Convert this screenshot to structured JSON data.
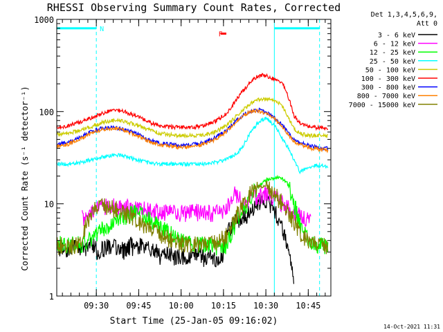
{
  "chart_data": {
    "type": "line",
    "title": "RHESSI Observing Summary Count Rates, Corrected",
    "xlabel": "Start Time (25-Jan-05 09:16:02)",
    "ylabel": "Corrected Count Rate (s⁻¹ detector⁻¹)",
    "x_unit": "minutes after 09:16:02",
    "xlim": [
      0,
      97
    ],
    "ylim": [
      1,
      1000
    ],
    "yscale": "log",
    "x_ticks": [
      "09:30",
      "09:45",
      "10:00",
      "10:15",
      "10:30",
      "10:45"
    ],
    "x_tick_values": [
      14,
      29,
      44,
      59,
      74,
      89
    ],
    "y_ticks": [
      "1",
      "10",
      "100",
      "1000"
    ],
    "y_tick_values": [
      1,
      10,
      100,
      1000
    ],
    "legend_header": [
      "Det 1,3,4,5,6,9,",
      "Att 0"
    ],
    "legend_position": "top-right outside",
    "series": [
      {
        "name": "3 - 6 keV",
        "color": "#000000",
        "x": [
          0,
          2,
          4,
          6,
          8,
          10,
          12,
          14,
          15,
          16,
          18,
          20,
          22,
          24,
          26,
          28,
          30,
          32,
          34,
          36,
          38,
          40,
          42,
          44,
          46,
          48,
          50,
          52,
          54,
          56,
          58,
          59,
          60,
          62,
          64,
          66,
          68,
          70,
          72,
          74,
          76,
          78,
          80,
          82,
          84
        ],
        "y": [
          3.3,
          3.5,
          3.2,
          3.6,
          3.4,
          3.3,
          3.7,
          3.4,
          2.3,
          3.2,
          3.6,
          3.5,
          3.3,
          3.1,
          3.6,
          3.3,
          3.5,
          3.2,
          3.4,
          2.8,
          2.7,
          2.9,
          2.6,
          2.8,
          2.5,
          2.7,
          2.9,
          2.6,
          2.8,
          2.4,
          2.7,
          3.0,
          4.5,
          6.0,
          6.8,
          7.5,
          8.0,
          9.0,
          10.5,
          11.0,
          9.5,
          7.5,
          5.0,
          3.0,
          1.2
        ]
      },
      {
        "name": "6 - 12 keV",
        "color": "#ff00ff",
        "x": [
          9,
          11,
          13,
          15,
          20,
          25,
          30,
          35,
          40,
          45,
          50,
          55,
          60,
          62,
          63,
          64,
          65,
          66,
          68,
          70,
          72,
          74,
          76,
          78,
          80,
          82,
          84,
          86,
          88,
          90
        ],
        "y": [
          7.0,
          8.0,
          9.0,
          9.5,
          9.5,
          9.2,
          8.8,
          8.2,
          8.0,
          8.0,
          8.2,
          8.0,
          8.5,
          12.0,
          13.5,
          12.0,
          11.0,
          11.0,
          11.5,
          12.0,
          12.5,
          12.8,
          12.5,
          11.5,
          10.0,
          9.0,
          8.0,
          7.5,
          7.0,
          6.5
        ]
      },
      {
        "name": "12 - 25 keV",
        "color": "#00ff00",
        "x": [
          0,
          4,
          8,
          10,
          12,
          14,
          16,
          18,
          20,
          24,
          28,
          32,
          36,
          40,
          44,
          48,
          52,
          56,
          60,
          62,
          64,
          66,
          68,
          70,
          72,
          74,
          76,
          78,
          80,
          82,
          84,
          86,
          88,
          90,
          92,
          94,
          96
        ],
        "y": [
          3.8,
          3.6,
          3.7,
          3.8,
          4.2,
          4.8,
          5.3,
          5.8,
          6.3,
          7.3,
          8.3,
          7.0,
          5.8,
          4.8,
          4.0,
          3.8,
          3.6,
          3.5,
          3.6,
          5.0,
          7.0,
          9.0,
          11.0,
          14.0,
          16.0,
          18.0,
          19.0,
          19.5,
          18.5,
          16.0,
          10.0,
          6.0,
          4.5,
          3.8,
          3.5,
          3.6,
          3.5
        ]
      },
      {
        "name": "25 - 50 keV",
        "color": "#00ffff",
        "x": [
          0,
          4,
          8,
          12,
          16,
          20,
          24,
          28,
          32,
          36,
          40,
          44,
          48,
          52,
          56,
          60,
          62,
          64,
          66,
          68,
          70,
          72,
          74,
          76,
          78,
          80,
          82,
          84,
          86,
          88,
          90,
          92,
          94,
          96
        ],
        "y": [
          27,
          27,
          28,
          30,
          32,
          34,
          33,
          30,
          28,
          27,
          27,
          27,
          27,
          27,
          28,
          30,
          33,
          36,
          42,
          55,
          68,
          80,
          85,
          75,
          65,
          50,
          40,
          30,
          22,
          24,
          25,
          26,
          26,
          25
        ]
      },
      {
        "name": "50 - 100 keV",
        "color": "#cccc00",
        "x": [
          0,
          4,
          8,
          12,
          16,
          20,
          24,
          28,
          32,
          36,
          40,
          44,
          48,
          52,
          56,
          60,
          62,
          64,
          66,
          68,
          70,
          72,
          74,
          76,
          78,
          80,
          82,
          84,
          86,
          88,
          90,
          92,
          94,
          96
        ],
        "y": [
          57,
          58,
          62,
          68,
          76,
          80,
          78,
          72,
          64,
          59,
          56,
          55,
          55,
          56,
          60,
          70,
          80,
          92,
          105,
          118,
          130,
          135,
          140,
          135,
          128,
          110,
          85,
          65,
          58,
          56,
          55,
          55,
          55,
          54
        ]
      },
      {
        "name": "100 - 300 keV",
        "color": "#ff0000",
        "x": [
          0,
          4,
          8,
          12,
          16,
          20,
          24,
          28,
          32,
          36,
          40,
          44,
          48,
          52,
          56,
          60,
          62,
          64,
          66,
          68,
          70,
          72,
          74,
          76,
          78,
          80,
          82,
          84,
          86,
          88,
          90,
          92,
          94,
          96
        ],
        "y": [
          68,
          70,
          77,
          85,
          95,
          105,
          100,
          90,
          78,
          70,
          68,
          68,
          68,
          70,
          78,
          95,
          115,
          140,
          170,
          200,
          230,
          250,
          245,
          230,
          220,
          200,
          140,
          90,
          75,
          70,
          68,
          67,
          66,
          65
        ]
      },
      {
        "name": "300 - 800 keV",
        "color": "#0000ff",
        "x": [
          0,
          4,
          8,
          12,
          16,
          20,
          24,
          28,
          32,
          36,
          40,
          44,
          48,
          52,
          56,
          60,
          62,
          64,
          66,
          68,
          70,
          72,
          74,
          76,
          78,
          80,
          82,
          84,
          86,
          88,
          90,
          92,
          94,
          96
        ],
        "y": [
          44,
          46,
          52,
          60,
          66,
          68,
          64,
          58,
          50,
          46,
          44,
          43,
          44,
          46,
          52,
          62,
          72,
          82,
          92,
          100,
          105,
          104,
          98,
          90,
          80,
          70,
          58,
          50,
          46,
          44,
          42,
          41,
          40,
          40
        ]
      },
      {
        "name": "800 - 7000 keV",
        "color": "#ff8000",
        "x": [
          0,
          4,
          8,
          12,
          16,
          20,
          24,
          28,
          32,
          36,
          40,
          44,
          48,
          52,
          56,
          60,
          62,
          64,
          66,
          68,
          70,
          72,
          74,
          76,
          78,
          80,
          82,
          84,
          86,
          88,
          90,
          92,
          94,
          96
        ],
        "y": [
          42,
          44,
          50,
          58,
          64,
          66,
          62,
          56,
          48,
          44,
          42,
          41,
          42,
          44,
          50,
          60,
          70,
          80,
          90,
          97,
          102,
          100,
          95,
          88,
          78,
          68,
          56,
          48,
          44,
          42,
          40,
          39,
          39,
          38
        ]
      },
      {
        "name": "7000 - 15000 keV",
        "color": "#808000",
        "x": [
          0,
          4,
          8,
          10,
          12,
          14,
          16,
          18,
          20,
          24,
          28,
          30,
          32,
          36,
          40,
          44,
          48,
          52,
          56,
          60,
          62,
          64,
          66,
          68,
          70,
          72,
          74,
          76,
          78,
          80,
          82,
          84,
          86,
          88,
          90,
          92,
          94,
          96
        ],
        "y": [
          3.6,
          3.5,
          3.7,
          5.5,
          7.5,
          9.0,
          9.5,
          9.5,
          9.0,
          8.2,
          7.0,
          6.0,
          5.5,
          4.8,
          4.2,
          3.8,
          3.7,
          3.6,
          3.8,
          4.5,
          6.0,
          8.0,
          10.0,
          12.5,
          14.5,
          15.5,
          15.0,
          14.0,
          12.0,
          10.0,
          8.0,
          6.5,
          5.0,
          4.2,
          3.8,
          3.6,
          3.5,
          3.6
        ]
      }
    ],
    "annotations": [
      {
        "text": "N",
        "color": "#00ffff",
        "x": 14,
        "y": 800
      },
      {
        "text": "F",
        "color": "#ff0000",
        "x": 56,
        "y": 700
      }
    ],
    "bars": [
      {
        "color": "#00ffff",
        "x_start": 0,
        "x_end": 14,
        "y": 800
      },
      {
        "color": "#00ffff",
        "x_start": 77,
        "x_end": 93,
        "y": 800
      },
      {
        "color": "#ff0000",
        "x_start": 58,
        "x_end": 60,
        "y": 700
      }
    ],
    "vertical_lines": [
      {
        "x": 0,
        "color": "#00ffff",
        "style": "solid"
      },
      {
        "x": 14,
        "color": "#00ffff",
        "style": "dashed"
      },
      {
        "x": 77,
        "color": "#00ffff",
        "style": "solid"
      },
      {
        "x": 93,
        "color": "#00ffff",
        "style": "dashed"
      }
    ]
  },
  "footer": {
    "timestamp": "14-Oct-2021 11:31"
  }
}
